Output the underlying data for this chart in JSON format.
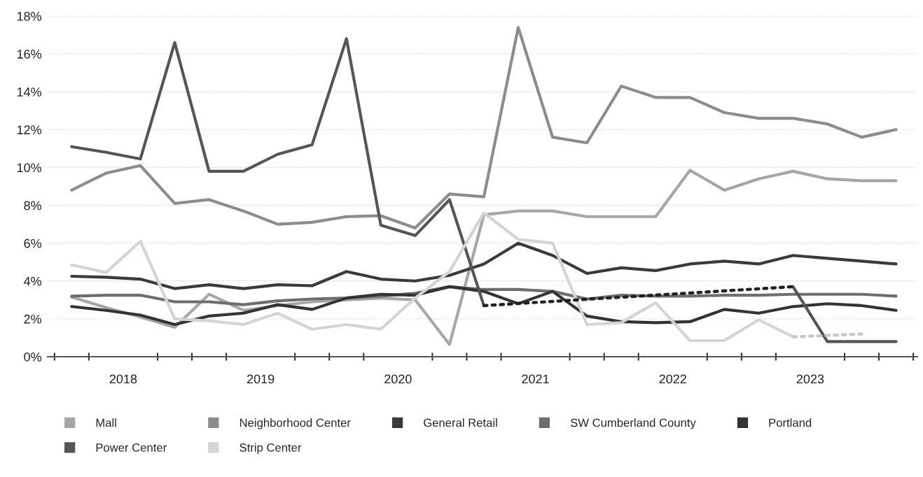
{
  "chart_data": {
    "type": "line",
    "x": [
      2018.125,
      2018.375,
      2018.625,
      2018.875,
      2019.125,
      2019.375,
      2019.625,
      2019.875,
      2020.125,
      2020.375,
      2020.625,
      2020.875,
      2021.125,
      2021.375,
      2021.625,
      2021.875,
      2022.125,
      2022.375,
      2022.625,
      2022.875,
      2023.125,
      2023.375,
      2023.625,
      2023.875,
      2024.125
    ],
    "series": [
      {
        "name": "Mall",
        "color": "#a6a6a6",
        "values": [
          3.15,
          2.6,
          2.1,
          1.55,
          3.3,
          2.45,
          2.7,
          2.9,
          3.0,
          3.1,
          3.0,
          0.65,
          7.5,
          7.7,
          7.7,
          7.4,
          7.4,
          7.4,
          9.85,
          8.8,
          9.4,
          9.8,
          9.4,
          9.3,
          9.3
        ]
      },
      {
        "name": "Neighborhood Center",
        "color": "#8c8c8c",
        "values": [
          8.8,
          9.7,
          10.1,
          8.1,
          8.3,
          7.7,
          7.0,
          7.1,
          7.4,
          7.45,
          6.8,
          8.6,
          8.45,
          17.4,
          11.6,
          11.3,
          14.3,
          13.7,
          13.7,
          12.9,
          12.6,
          12.6,
          12.3,
          11.6,
          12.0
        ]
      },
      {
        "name": "General Retail",
        "color": "#3a3a3a",
        "values": [
          4.25,
          4.2,
          4.1,
          3.6,
          3.8,
          3.6,
          3.8,
          3.75,
          4.5,
          4.1,
          4.0,
          4.3,
          4.9,
          6.0,
          5.35,
          4.4,
          4.7,
          4.55,
          4.9,
          5.05,
          4.9,
          5.35,
          5.2,
          5.05,
          4.9
        ]
      },
      {
        "name": "SW Cumberland County",
        "color": "#6e6e6e",
        "values": [
          3.2,
          3.25,
          3.25,
          2.9,
          2.9,
          2.75,
          2.95,
          3.05,
          3.1,
          3.2,
          3.35,
          3.7,
          3.55,
          3.55,
          3.45,
          3.05,
          3.25,
          3.2,
          3.2,
          3.25,
          3.25,
          3.3,
          3.3,
          3.3,
          3.2
        ]
      },
      {
        "name": "Portland",
        "color": "#333333",
        "values": [
          2.65,
          2.45,
          2.2,
          1.7,
          2.15,
          2.3,
          2.75,
          2.5,
          3.1,
          3.3,
          3.25,
          3.7,
          3.45,
          2.8,
          3.45,
          2.15,
          1.85,
          1.8,
          1.85,
          2.5,
          2.3,
          2.65,
          2.8,
          2.7,
          2.45
        ]
      },
      {
        "name": "Power Center",
        "color": "#555555",
        "values": [
          11.1,
          10.8,
          10.45,
          16.6,
          9.8,
          9.8,
          10.7,
          11.2,
          16.8,
          6.95,
          6.4,
          8.3,
          2.7,
          null,
          null,
          null,
          null,
          null,
          null,
          null,
          null,
          3.7,
          0.8,
          0.8,
          0.8
        ]
      },
      {
        "name": "Strip Center",
        "color": "#d4d4d4",
        "values": [
          4.85,
          4.45,
          6.1,
          2.0,
          1.9,
          1.7,
          2.3,
          1.45,
          1.7,
          1.45,
          3.1,
          4.5,
          7.6,
          6.2,
          6.0,
          1.7,
          1.8,
          2.85,
          0.85,
          0.85,
          1.95,
          1.05,
          null,
          null,
          null
        ]
      },
      {
        "color": "#222222",
        "line_style": "dotted",
        "x": [
          2021.125,
          2023.375
        ],
        "values": [
          2.7,
          3.7
        ]
      },
      {
        "color": "#c8c8c8",
        "line_style": "dotted",
        "x": [
          2023.375,
          2023.875
        ],
        "values": [
          1.05,
          1.2
        ]
      }
    ],
    "xlim": [
      2017.95,
      2024.28
    ],
    "xticks": [
      {
        "value": 2018,
        "label": null
      },
      {
        "value": 2018.25,
        "label": null
      },
      {
        "value": 2018.5,
        "label": "2018"
      },
      {
        "value": 2018.75,
        "label": null
      },
      {
        "value": 2019,
        "label": null
      },
      {
        "value": 2019.25,
        "label": null
      },
      {
        "value": 2019.5,
        "label": "2019"
      },
      {
        "value": 2019.75,
        "label": null
      },
      {
        "value": 2020,
        "label": null
      },
      {
        "value": 2020.25,
        "label": null
      },
      {
        "value": 2020.5,
        "label": "2020"
      },
      {
        "value": 2020.75,
        "label": null
      },
      {
        "value": 2021,
        "label": null
      },
      {
        "value": 2021.25,
        "label": null
      },
      {
        "value": 2021.5,
        "label": "2021"
      },
      {
        "value": 2021.75,
        "label": null
      },
      {
        "value": 2022,
        "label": null
      },
      {
        "value": 2022.25,
        "label": null
      },
      {
        "value": 2022.5,
        "label": "2022"
      },
      {
        "value": 2022.75,
        "label": null
      },
      {
        "value": 2023,
        "label": null
      },
      {
        "value": 2023.25,
        "label": null
      },
      {
        "value": 2023.5,
        "label": "2023"
      },
      {
        "value": 2023.75,
        "label": null
      },
      {
        "value": 2024,
        "label": null
      },
      {
        "value": 2024.25,
        "label": null
      }
    ],
    "ylim": [
      0,
      18
    ],
    "yticks": [
      {
        "value": 0,
        "label": "0%"
      },
      {
        "value": 2,
        "label": "2%"
      },
      {
        "value": 4,
        "label": "4%"
      },
      {
        "value": 6,
        "label": "6%"
      },
      {
        "value": 8,
        "label": "8%"
      },
      {
        "value": 10,
        "label": "10%"
      },
      {
        "value": 12,
        "label": "12%"
      },
      {
        "value": 14,
        "label": "14%"
      },
      {
        "value": 16,
        "label": "16%"
      },
      {
        "value": 18,
        "label": "18%"
      }
    ],
    "grid": "y",
    "legend": "bottom"
  }
}
